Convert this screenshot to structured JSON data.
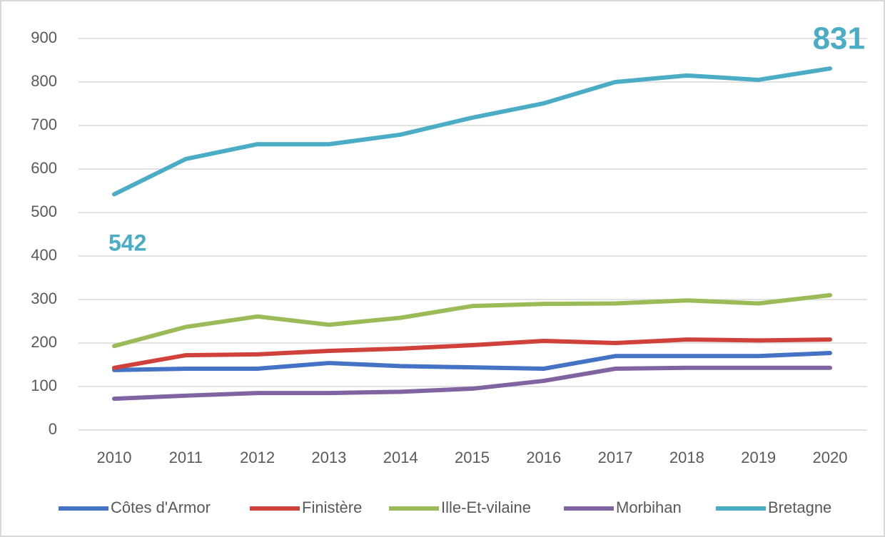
{
  "chart_data": {
    "type": "line",
    "categories": [
      "2010",
      "2011",
      "2012",
      "2013",
      "2014",
      "2015",
      "2016",
      "2017",
      "2018",
      "2019",
      "2020"
    ],
    "series": [
      {
        "name": "Côtes d'Armor",
        "color": "#4472c4",
        "values": [
          138,
          141,
          141,
          154,
          147,
          144,
          141,
          170,
          170,
          170,
          177
        ]
      },
      {
        "name": "Finistère",
        "color": "#d0413c",
        "values": [
          143,
          172,
          174,
          182,
          187,
          195,
          205,
          200,
          208,
          206,
          208
        ]
      },
      {
        "name": "Ille-Et-vilaine",
        "color": "#9bbb59",
        "values": [
          193,
          237,
          261,
          242,
          258,
          285,
          290,
          291,
          298,
          291,
          310
        ]
      },
      {
        "name": "Morbihan",
        "color": "#8064a2",
        "values": [
          72,
          79,
          85,
          85,
          88,
          95,
          113,
          141,
          143,
          143,
          143
        ]
      },
      {
        "name": "Bretagne",
        "color": "#4bacc6",
        "values": [
          542,
          623,
          657,
          657,
          679,
          718,
          751,
          800,
          815,
          805,
          831
        ]
      }
    ],
    "ylim": [
      0,
      900
    ],
    "yticks": [
      0,
      100,
      200,
      300,
      400,
      500,
      600,
      700,
      800,
      900
    ],
    "grid": true,
    "legend": "bottom"
  }
}
